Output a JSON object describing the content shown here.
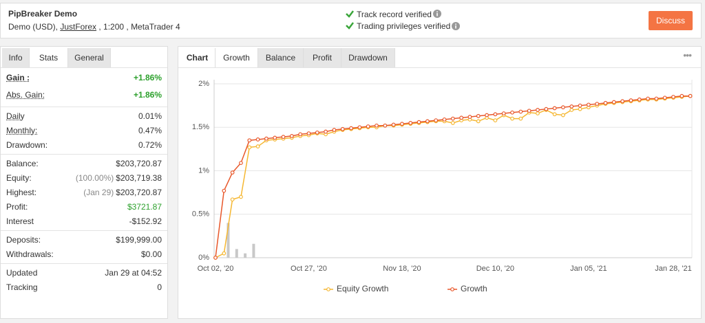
{
  "header": {
    "title": "PipBreaker Demo",
    "subtitle": [
      "Demo (USD), ",
      "JustForex",
      " , 1:200 , MetaTrader 4"
    ],
    "checks": [
      "Track record verified",
      "Trading privileges verified"
    ],
    "button": "Discuss"
  },
  "left_tabs": [
    "Info",
    "Stats",
    "General"
  ],
  "stats": [
    [
      {
        "label": "Gain :",
        "value": "+1.86%",
        "color": "#2ca02c"
      },
      {
        "label": "Abs. Gain:",
        "value": "+1.86%",
        "color": "#2ca02c"
      }
    ],
    [
      {
        "label": "Daily",
        "value": "0.01%"
      },
      {
        "label": "Monthly:",
        "value": "0.47%"
      },
      {
        "label": "Drawdown:",
        "value": "0.72%"
      }
    ],
    [
      {
        "label": "Balance:",
        "value": "$203,720.87"
      },
      {
        "label": "Equity:",
        "note": "(100.00%)",
        "value": "$203,719.38"
      },
      {
        "label": "Highest:",
        "note": "(Jan 29)",
        "value": "$203,720.87"
      },
      {
        "label": "Profit:",
        "value": "$3721.87",
        "color": "#2ca02c"
      },
      {
        "label": "Interest",
        "value": "-$152.92"
      }
    ],
    [
      {
        "label": "Deposits:",
        "value": "$199,999.00"
      },
      {
        "label": "Withdrawals:",
        "value": "$0.00"
      }
    ],
    [
      {
        "label": "Updated",
        "value": "Jan 29 at 04:52"
      },
      {
        "label": "Tracking",
        "value": "0"
      }
    ]
  ],
  "right_tabs": [
    "Chart",
    "Growth",
    "Balance",
    "Profit",
    "Drawdown"
  ],
  "chart_data": {
    "type": "line",
    "categories": [
      "Oct 02, '20",
      null,
      null,
      null,
      null,
      null,
      null,
      null,
      null,
      null,
      null,
      "Oct 27, '20",
      null,
      null,
      null,
      null,
      null,
      null,
      null,
      null,
      null,
      null,
      "Nov 18, '20",
      null,
      null,
      null,
      null,
      null,
      null,
      null,
      null,
      null,
      null,
      "Dec 10, '20",
      null,
      null,
      null,
      null,
      null,
      null,
      null,
      null,
      null,
      null,
      "Jan 05, '21",
      null,
      null,
      null,
      null,
      null,
      null,
      null,
      null,
      null,
      "Jan 28, '21",
      null,
      null
    ],
    "series": [
      {
        "name": "Equity Growth",
        "color": "#f5b731",
        "values": [
          0,
          0.05,
          0.67,
          0.7,
          1.27,
          1.28,
          1.35,
          1.36,
          1.37,
          1.38,
          1.4,
          1.41,
          1.43,
          1.42,
          1.45,
          1.47,
          1.48,
          1.49,
          1.5,
          1.5,
          1.52,
          1.52,
          1.53,
          1.54,
          1.55,
          1.56,
          1.57,
          1.57,
          1.55,
          1.58,
          1.59,
          1.57,
          1.61,
          1.58,
          1.64,
          1.6,
          1.6,
          1.67,
          1.66,
          1.7,
          1.65,
          1.64,
          1.7,
          1.71,
          1.73,
          1.75,
          1.77,
          1.78,
          1.79,
          1.8,
          1.81,
          1.82,
          1.82,
          1.83,
          1.84,
          1.85,
          1.86
        ]
      },
      {
        "name": "Growth",
        "color": "#e8572a",
        "values": [
          0,
          0.77,
          0.98,
          1.09,
          1.35,
          1.36,
          1.37,
          1.38,
          1.39,
          1.4,
          1.42,
          1.43,
          1.44,
          1.45,
          1.47,
          1.48,
          1.49,
          1.5,
          1.51,
          1.52,
          1.52,
          1.53,
          1.54,
          1.55,
          1.56,
          1.57,
          1.58,
          1.59,
          1.6,
          1.61,
          1.62,
          1.63,
          1.64,
          1.65,
          1.66,
          1.67,
          1.68,
          1.69,
          1.7,
          1.71,
          1.72,
          1.73,
          1.74,
          1.75,
          1.76,
          1.77,
          1.78,
          1.79,
          1.8,
          1.81,
          1.82,
          1.83,
          1.83,
          1.84,
          1.85,
          1.86,
          1.86
        ]
      }
    ],
    "bars": {
      "color": "#c8c8c8",
      "values": [
        null,
        0.4,
        0.1,
        0.05,
        0.16,
        null,
        null,
        null,
        null,
        null,
        null,
        null,
        null,
        null,
        null,
        null,
        null,
        null,
        null,
        null,
        null,
        null,
        null,
        null,
        null,
        null,
        null,
        null,
        null,
        null,
        null,
        null,
        null,
        null,
        null,
        null,
        null,
        null,
        null,
        null,
        null,
        null,
        null,
        null,
        null,
        null,
        null,
        null,
        null,
        null,
        null,
        null,
        null,
        null,
        null,
        null,
        null
      ]
    },
    "ylim": [
      0,
      2
    ],
    "yticks": [
      {
        "value": 0,
        "label": "0%"
      },
      {
        "value": 0.5,
        "label": "0.5%"
      },
      {
        "value": 1,
        "label": "1%"
      },
      {
        "value": 1.5,
        "label": "1.5%"
      },
      {
        "value": 2,
        "label": "2%"
      }
    ],
    "grid": true
  }
}
